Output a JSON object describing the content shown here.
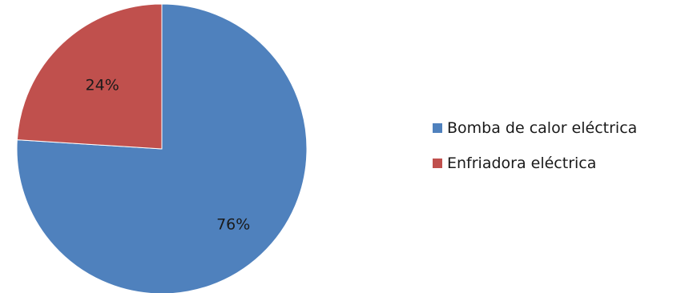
{
  "chart_data": {
    "type": "pie",
    "title": "",
    "slices": [
      {
        "name": "Bomba de calor eléctrica",
        "value": 76,
        "label": "76%",
        "color": "#4f81bd"
      },
      {
        "name": "Enfriadora eléctrica",
        "value": 24,
        "label": "24%",
        "color": "#c0504d"
      }
    ],
    "legend_position": "right"
  }
}
